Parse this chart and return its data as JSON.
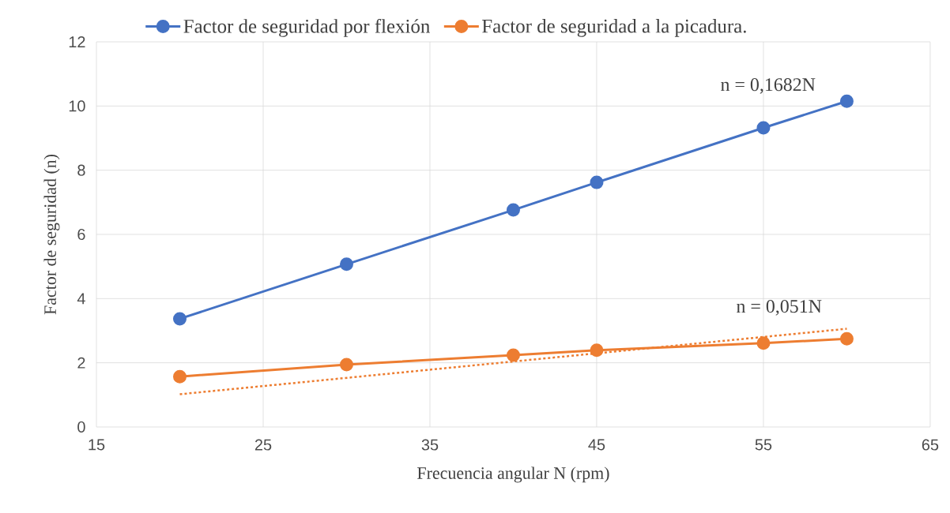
{
  "chart_data": {
    "type": "line",
    "xlabel": "Frecuencia angular N (rpm)",
    "ylabel": "Factor de seguridad (n)",
    "x": [
      20,
      30,
      40,
      45,
      55,
      60
    ],
    "series": [
      {
        "name": "Factor de seguridad por flexión",
        "color": "#4472c4",
        "values": [
          3.37,
          5.07,
          6.76,
          7.62,
          9.32,
          10.15
        ]
      },
      {
        "name": "Factor de seguridad a la picadura.",
        "color": "#ed7d31",
        "values": [
          1.57,
          1.94,
          2.24,
          2.39,
          2.61,
          2.75
        ]
      },
      {
        "type": "line",
        "color": "#ed7d31",
        "x": [
          20,
          60
        ],
        "values": [
          1.02,
          3.06
        ],
        "marker": "none",
        "line_style": "dotted"
      }
    ],
    "annotations": [
      "n = 0,1682N",
      "n = 0,051N"
    ],
    "xlim": [
      15,
      65
    ],
    "xticks": [
      15,
      25,
      35,
      45,
      55,
      65
    ],
    "ylim": [
      0,
      12
    ],
    "yticks": [
      0,
      2,
      4,
      6,
      8,
      10,
      12
    ],
    "grid": true,
    "legend": "top",
    "marker": "circle",
    "line_style": "solid"
  }
}
